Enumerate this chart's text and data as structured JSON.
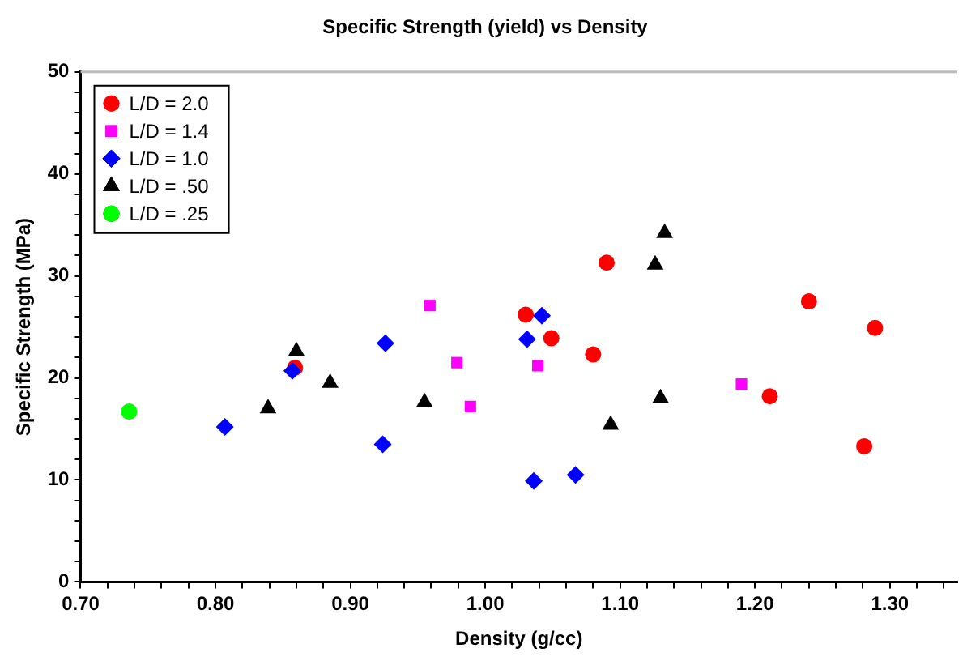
{
  "chart_data": {
    "type": "scatter",
    "title": "Specific Strength (yield) vs Density",
    "xlabel": "Density (g/cc)",
    "ylabel": "Specific Strength (MPa)",
    "xlim": [
      0.7,
      1.35
    ],
    "ylim": [
      0,
      50
    ],
    "xticks": [
      {
        "value": 0.7,
        "label": "0.70"
      },
      {
        "value": 0.72,
        "label": null
      },
      {
        "value": 0.74,
        "label": null
      },
      {
        "value": 0.76,
        "label": null
      },
      {
        "value": 0.78,
        "label": null
      },
      {
        "value": 0.8,
        "label": "0.80"
      },
      {
        "value": 0.82,
        "label": null
      },
      {
        "value": 0.84,
        "label": null
      },
      {
        "value": 0.86,
        "label": null
      },
      {
        "value": 0.88,
        "label": null
      },
      {
        "value": 0.9,
        "label": "0.90"
      },
      {
        "value": 0.92,
        "label": null
      },
      {
        "value": 0.94,
        "label": null
      },
      {
        "value": 0.96,
        "label": null
      },
      {
        "value": 0.98,
        "label": null
      },
      {
        "value": 1.0,
        "label": "1.00"
      },
      {
        "value": 1.02,
        "label": null
      },
      {
        "value": 1.04,
        "label": null
      },
      {
        "value": 1.06,
        "label": null
      },
      {
        "value": 1.08,
        "label": null
      },
      {
        "value": 1.1,
        "label": "1.10"
      },
      {
        "value": 1.12,
        "label": null
      },
      {
        "value": 1.14,
        "label": null
      },
      {
        "value": 1.16,
        "label": null
      },
      {
        "value": 1.18,
        "label": null
      },
      {
        "value": 1.2,
        "label": "1.20"
      },
      {
        "value": 1.22,
        "label": null
      },
      {
        "value": 1.24,
        "label": null
      },
      {
        "value": 1.26,
        "label": null
      },
      {
        "value": 1.28,
        "label": null
      },
      {
        "value": 1.3,
        "label": "1.30"
      },
      {
        "value": 1.32,
        "label": null
      },
      {
        "value": 1.34,
        "label": null
      }
    ],
    "yticks": [
      0,
      {
        "value": 2,
        "label": null
      },
      {
        "value": 4,
        "label": null
      },
      {
        "value": 6,
        "label": null
      },
      {
        "value": 8,
        "label": null
      },
      10,
      {
        "value": 12,
        "label": null
      },
      {
        "value": 14,
        "label": null
      },
      {
        "value": 16,
        "label": null
      },
      {
        "value": 18,
        "label": null
      },
      20,
      {
        "value": 22,
        "label": null
      },
      {
        "value": 24,
        "label": null
      },
      {
        "value": 26,
        "label": null
      },
      {
        "value": 28,
        "label": null
      },
      30,
      {
        "value": 32,
        "label": null
      },
      {
        "value": 34,
        "label": null
      },
      {
        "value": 36,
        "label": null
      },
      {
        "value": 38,
        "label": null
      },
      40,
      {
        "value": 42,
        "label": null
      },
      {
        "value": 44,
        "label": null
      },
      {
        "value": 46,
        "label": null
      },
      {
        "value": 48,
        "label": null
      },
      50
    ],
    "grid": false,
    "legend": "top left",
    "series": [
      {
        "name": "L/D = 2.0",
        "color": "#ff0000",
        "marker": "circle",
        "x": [
          0.859,
          1.03,
          1.049,
          1.09,
          1.08,
          1.24,
          1.289,
          1.211,
          1.281
        ],
        "values": [
          21.0,
          26.2,
          23.9,
          31.3,
          22.3,
          27.5,
          24.9,
          18.2,
          13.3
        ]
      },
      {
        "name": "L/D = 1.4",
        "color": "#ff00ff",
        "marker": "square",
        "x": [
          0.959,
          0.979,
          0.989,
          1.039,
          1.19
        ],
        "values": [
          27.1,
          21.5,
          17.2,
          21.2,
          19.4
        ]
      },
      {
        "name": "L/D = 1.0",
        "color": "#0000ff",
        "marker": "diamond",
        "x": [
          0.807,
          0.857,
          0.926,
          0.924,
          1.031,
          1.042,
          1.036,
          1.067
        ],
        "values": [
          15.2,
          20.7,
          23.4,
          13.5,
          23.8,
          26.1,
          9.9,
          10.5
        ]
      },
      {
        "name": "L/D = .50",
        "color": "#000000",
        "marker": "triangle",
        "x": [
          0.839,
          0.86,
          0.885,
          0.955,
          1.093,
          1.126,
          1.133,
          1.13
        ],
        "values": [
          17.0,
          22.6,
          19.5,
          17.6,
          15.4,
          31.1,
          34.2,
          18.0
        ]
      },
      {
        "name": "L/D = .25",
        "color": "#00ff00",
        "marker": "circle",
        "x": [
          0.736
        ],
        "values": [
          16.7
        ]
      }
    ]
  }
}
